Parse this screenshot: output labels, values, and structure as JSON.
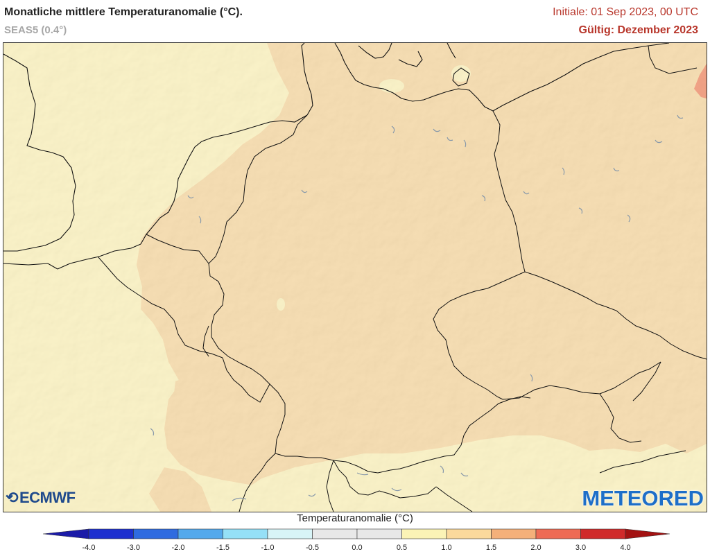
{
  "header": {
    "title": "Monatliche mittlere Temperaturanomalie (°C).",
    "model": "SEAS5 (0.4°)",
    "init": "Initiale: 01 Sep 2023, 00 UTC",
    "valid": "Gültig: Dezember 2023"
  },
  "logos": {
    "ecmwf": "ECMWF",
    "meteored": "METEORED"
  },
  "legend": {
    "title": "Temperaturanomalie (°C)",
    "ticks": [
      "-4.0",
      "-3.0",
      "-2.0",
      "-1.5",
      "-1.0",
      "-0.5",
      "0.0",
      "0.5",
      "1.0",
      "1.5",
      "2.0",
      "3.0",
      "4.0"
    ],
    "colors": [
      "#1d2fcf",
      "#2f6be0",
      "#54a9ec",
      "#95e0f7",
      "#d8f4f7",
      "#e8e8e8",
      "#e8e8e8",
      "#fbf3b6",
      "#fbd99c",
      "#f4b07a",
      "#ee6b55",
      "#d02a2a"
    ],
    "under_color": "#1b1ba8",
    "over_color": "#a31212"
  },
  "map": {
    "region": "Central Europe / Germany",
    "colors": {
      "anomaly_0_5_to_1_0": "#fbf1bb",
      "anomaly_1_0_to_1_5": "#f6d7a1",
      "anomaly_2_0_to_3_0": "#f08c68",
      "borders": "#111111",
      "lakes": "#8899aa"
    }
  }
}
